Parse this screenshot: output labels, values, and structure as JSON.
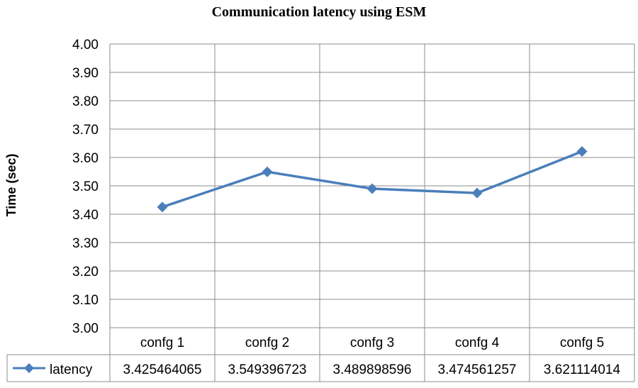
{
  "chart_data": {
    "type": "line",
    "title": "Communication latency using ESM",
    "ylabel": "Time (sec)",
    "xlabel": "",
    "categories": [
      "confg 1",
      "confg 2",
      "confg 3",
      "confg 4",
      "confg 5"
    ],
    "series": [
      {
        "name": "latency",
        "values": [
          3.425464065,
          3.549396723,
          3.489898596,
          3.474561257,
          3.621114014
        ],
        "value_labels": [
          "3.425464065",
          "3.549396723",
          "3.489898596",
          "3.474561257",
          "3.621114014"
        ],
        "color": "#4a7ebb",
        "marker": "diamond"
      }
    ],
    "ylim": [
      3.0,
      4.0
    ],
    "yticks": [
      "4.00",
      "3.90",
      "3.80",
      "3.70",
      "3.60",
      "3.50",
      "3.40",
      "3.30",
      "3.20",
      "3.10",
      "3.00"
    ],
    "grid": true,
    "legend": "data-table",
    "colors": {
      "gridline": "#8c8c8c",
      "series": "#4a7ebb"
    }
  }
}
